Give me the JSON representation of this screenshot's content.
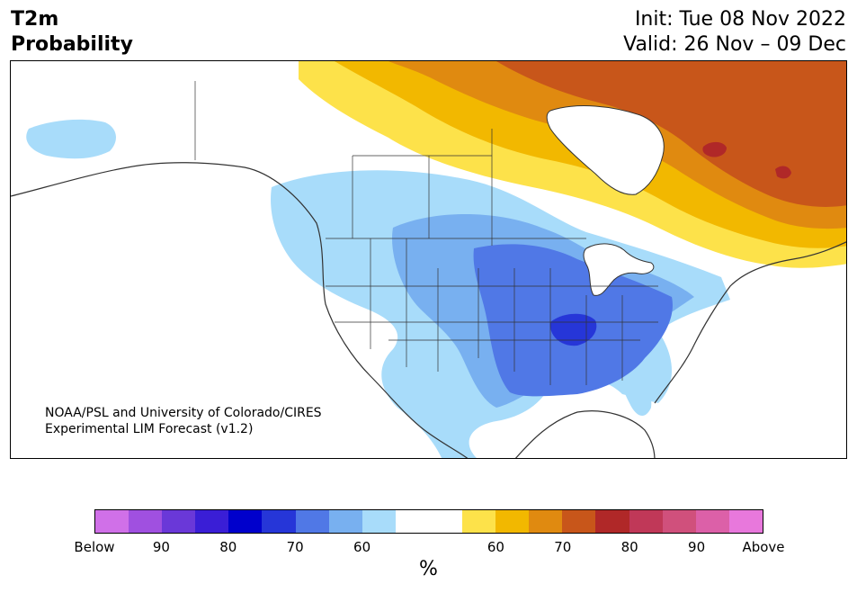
{
  "title": {
    "line1": "T2m",
    "line2": "Probability"
  },
  "dates": {
    "init": "Init: Tue 08 Nov 2022",
    "valid": "Valid: 26 Nov – 09 Dec"
  },
  "credit": {
    "line1": "NOAA/PSL and University of Colorado/CIRES",
    "line2": "Experimental LIM Forecast (v1.2)"
  },
  "colorbar": {
    "unit": "%",
    "colors": [
      "#d070e8",
      "#a050e0",
      "#6a38d8",
      "#3a1ed6",
      "#0000cc",
      "#2636d8",
      "#5078e6",
      "#78b0f0",
      "#a8dcfa",
      "#ffffff",
      "#ffffff",
      "#fde24a",
      "#f2b800",
      "#e08a10",
      "#c8561a",
      "#b02828",
      "#c03858",
      "#d0507c",
      "#dc60a8",
      "#e878dc"
    ],
    "tick_labels": [
      "Below",
      "90",
      "80",
      "70",
      "60",
      "60",
      "70",
      "80",
      "90",
      "Above"
    ]
  },
  "map_colors": {
    "light_blue": "#a8dcfa",
    "mid_blue": "#78b0f0",
    "blue": "#5078e6",
    "deep_blue": "#2636d8",
    "yellow": "#fde24a",
    "gold": "#f2b800",
    "orange": "#e08a10",
    "burnt": "#c8561a",
    "red": "#b02828",
    "land_outline": "#333333"
  }
}
